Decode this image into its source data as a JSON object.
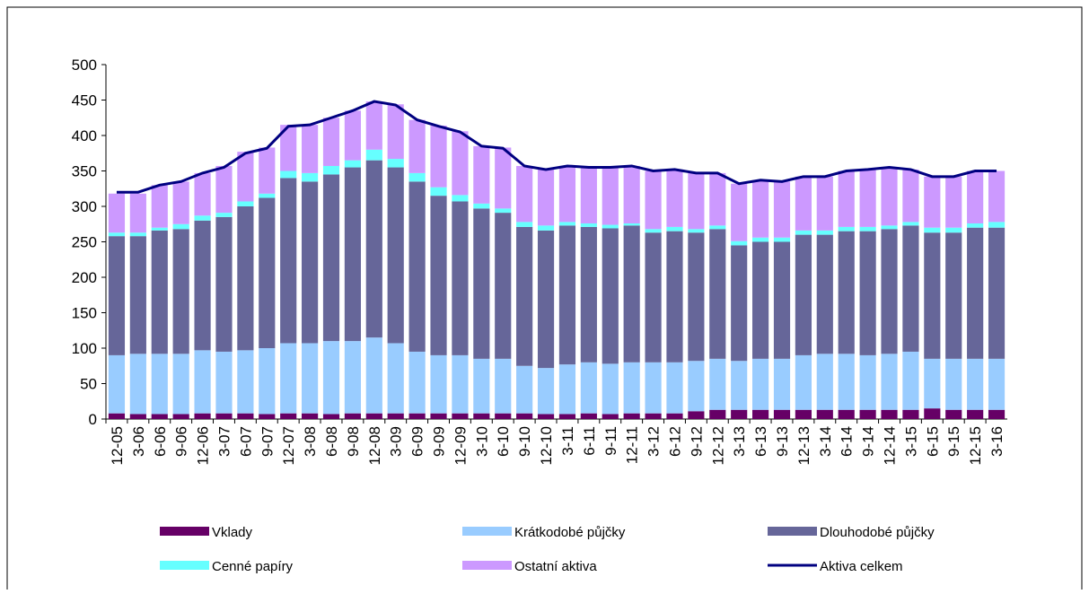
{
  "chart_data": {
    "type": "bar",
    "categories": [
      "12-05",
      "3-06",
      "6-06",
      "9-06",
      "12-06",
      "3-07",
      "6-07",
      "9-07",
      "12-07",
      "3-08",
      "6-08",
      "9-08",
      "12-08",
      "3-09",
      "6-09",
      "9-09",
      "12-09",
      "3-10",
      "6-10",
      "9-10",
      "12-10",
      "3-11",
      "6-11",
      "9-11",
      "12-11",
      "3-12",
      "6-12",
      "9-12",
      "12-12",
      "3-13",
      "6-13",
      "9-13",
      "12-13",
      "3-14",
      "6-14",
      "9-14",
      "12-14",
      "3-15",
      "6-15",
      "9-15",
      "12-15",
      "3-16"
    ],
    "series": [
      {
        "name": "Vklady",
        "color": "#660066",
        "values": [
          8,
          7,
          7,
          7,
          8,
          8,
          8,
          7,
          8,
          8,
          7,
          8,
          8,
          8,
          8,
          8,
          8,
          8,
          8,
          8,
          7,
          7,
          8,
          7,
          8,
          8,
          8,
          11,
          13,
          13,
          13,
          13,
          13,
          13,
          13,
          13,
          13,
          13,
          15,
          13,
          13,
          13
        ]
      },
      {
        "name": "Krátkodobé půjčky",
        "color": "#99ccff",
        "values": [
          82,
          85,
          85,
          85,
          89,
          87,
          89,
          93,
          99,
          99,
          103,
          102,
          107,
          99,
          87,
          82,
          82,
          77,
          77,
          67,
          65,
          70,
          72,
          71,
          72,
          72,
          72,
          71,
          72,
          69,
          72,
          72,
          77,
          79,
          79,
          77,
          79,
          82,
          70,
          72,
          72,
          72
        ]
      },
      {
        "name": "Dlouhodobé půjčky",
        "color": "#666699",
        "values": [
          168,
          166,
          174,
          176,
          183,
          190,
          203,
          212,
          233,
          228,
          235,
          245,
          250,
          248,
          240,
          225,
          217,
          212,
          206,
          196,
          194,
          196,
          191,
          191,
          193,
          183,
          185,
          181,
          183,
          163,
          165,
          165,
          170,
          168,
          173,
          175,
          176,
          178,
          178,
          178,
          185,
          185
        ]
      },
      {
        "name": "Cenné papíry",
        "color": "#66ffff",
        "values": [
          5,
          5,
          4,
          7,
          7,
          6,
          7,
          6,
          10,
          12,
          12,
          10,
          15,
          12,
          12,
          12,
          9,
          7,
          6,
          7,
          7,
          5,
          5,
          5,
          3,
          5,
          6,
          5,
          5,
          6,
          6,
          6,
          6,
          6,
          6,
          6,
          5,
          5,
          7,
          7,
          6,
          8
        ]
      },
      {
        "name": "Ostatní aktiva",
        "color": "#cc99ff",
        "values": [
          55,
          55,
          60,
          60,
          60,
          66,
          70,
          65,
          65,
          68,
          68,
          70,
          68,
          77,
          75,
          87,
          90,
          81,
          86,
          79,
          79,
          79,
          79,
          81,
          81,
          82,
          81,
          79,
          74,
          81,
          81,
          79,
          76,
          76,
          79,
          81,
          82,
          74,
          72,
          72,
          74,
          72
        ]
      },
      {
        "name": "Aktiva celkem",
        "color": "#000080",
        "type": "line",
        "values": [
          320,
          320,
          330,
          335,
          347,
          355,
          375,
          382,
          413,
          415,
          425,
          435,
          448,
          443,
          422,
          413,
          405,
          385,
          382,
          357,
          352,
          357,
          355,
          355,
          357,
          350,
          352,
          347,
          347,
          332,
          337,
          335,
          342,
          342,
          350,
          352,
          355,
          352,
          342,
          342,
          350,
          350
        ]
      }
    ],
    "ylim": [
      0,
      500
    ],
    "yticks": [
      0,
      50,
      100,
      150,
      200,
      250,
      300,
      350,
      400,
      450,
      500
    ]
  }
}
